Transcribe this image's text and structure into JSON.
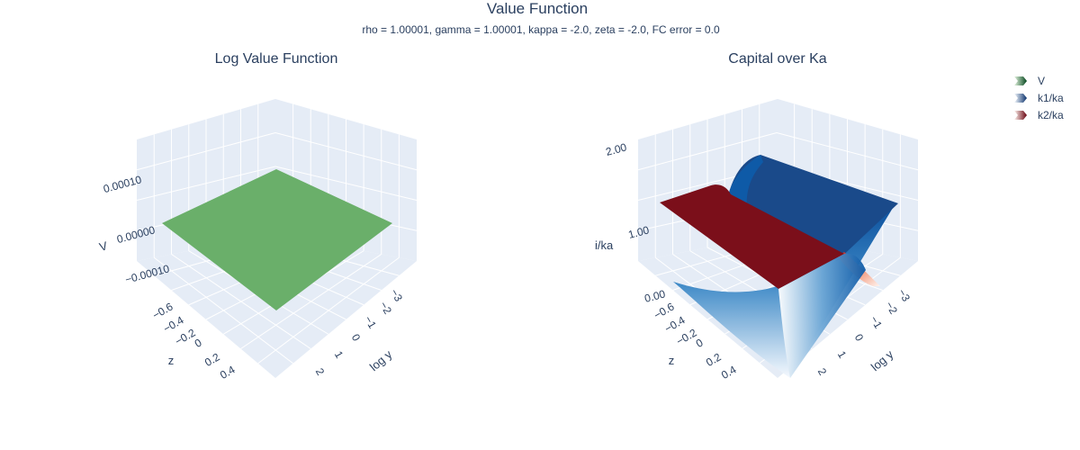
{
  "figure": {
    "title": "Value Function",
    "subtitle": "rho = 1.00001, gamma = 1.00001, kappa = -2.0, zeta = -2.0, FC error = 0.0"
  },
  "legend": {
    "items": [
      {
        "label": "V",
        "colorscale": "Greens"
      },
      {
        "label": "k1/ka",
        "colorscale": "Blues"
      },
      {
        "label": "k2/ka",
        "colorscale": "Reds"
      }
    ]
  },
  "chart_data": [
    {
      "type": "surface",
      "title": "Log Value Function",
      "xlabel": "log y",
      "ylabel": "z",
      "zlabel": "V",
      "x_ticks": [
        "−3",
        "−2",
        "−1",
        "0",
        "1",
        "2"
      ],
      "y_ticks": [
        "−0.6",
        "−0.4",
        "−0.2",
        "0",
        "0.2",
        "0.4"
      ],
      "z_ticks": [
        "−0.00010",
        "0.00000",
        "0.00010"
      ],
      "zlim": [
        -0.00015,
        0.00015
      ],
      "series": [
        {
          "name": "V",
          "color": "#6aaf6a",
          "description_values": {
            "V": 0.0
          }
        }
      ]
    },
    {
      "type": "surface",
      "title": "Capital over Ka",
      "xlabel": "log y",
      "ylabel": "z",
      "zlabel": "i/ka",
      "x_ticks": [
        "−3",
        "−2",
        "−1",
        "0",
        "1",
        "2"
      ],
      "y_ticks": [
        "−0.6",
        "−0.4",
        "−0.2",
        "0",
        "0.2",
        "0.4"
      ],
      "z_ticks": [
        "0.00",
        "1.00",
        "2.00"
      ],
      "zlim": [
        0,
        2
      ],
      "series": [
        {
          "name": "k1/ka",
          "color_low": "#f7fbff",
          "color_high": "#08306b",
          "z_values": {
            "z_low": 0.0,
            "z_high": 2.0
          }
        },
        {
          "name": "k2/ka",
          "color_low": "#fff5f0",
          "color_high": "#67000d",
          "z_values": {
            "z_low": 2.0,
            "z_high": 0.0
          }
        }
      ]
    }
  ]
}
